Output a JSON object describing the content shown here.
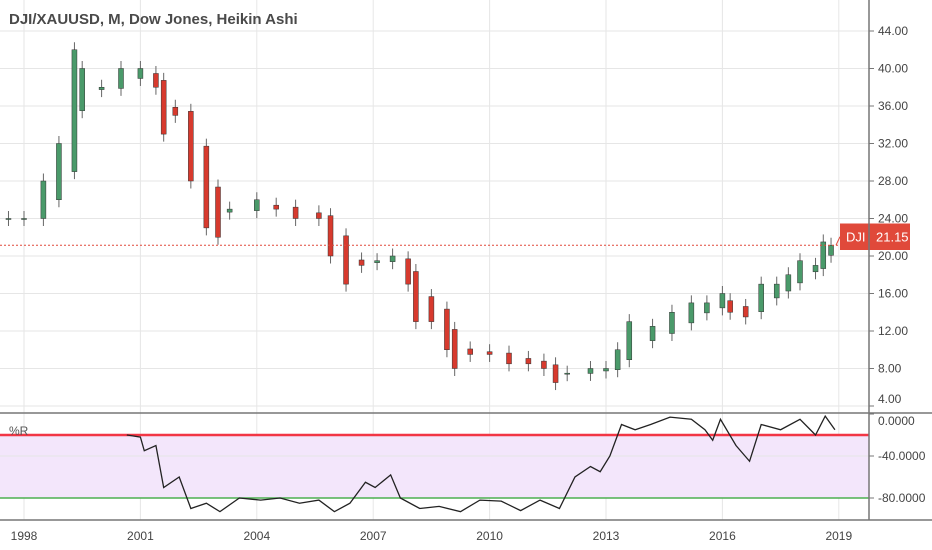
{
  "header": {
    "title": "DJI/XAUUSD, M, Dow Jones, Heikin Ashi"
  },
  "chart_data": [
    {
      "type": "candlestick",
      "style": "Heikin Ashi",
      "symbol": "DJI/XAUUSD",
      "ylim": [
        4,
        44
      ],
      "y_ticks": [
        "44.00",
        "40.00",
        "36.00",
        "32.00",
        "28.00",
        "24.00",
        "20.00",
        "16.00",
        "12.00",
        "8.00",
        "4.00"
      ],
      "x_ticks": [
        "1998",
        "2001",
        "2004",
        "2007",
        "2010",
        "2013",
        "2016",
        "2019"
      ],
      "grid": true,
      "last_price": {
        "label": "DJI",
        "value": "21.15",
        "color": "#e0493a"
      },
      "colors": {
        "up": "#4a9a6a",
        "down": "#d73a2e"
      },
      "x": [
        1997.6,
        1998.0,
        1998.5,
        1998.9,
        1999.3,
        1999.5,
        2000.0,
        2000.5,
        2001.0,
        2001.4,
        2001.6,
        2001.9,
        2002.3,
        2002.7,
        2003.0,
        2003.3,
        2004.0,
        2004.5,
        2005.0,
        2005.6,
        2005.9,
        2006.3,
        2006.7,
        2007.1,
        2007.5,
        2007.9,
        2008.1,
        2008.5,
        2008.9,
        2009.1,
        2009.5,
        2010.0,
        2010.5,
        2011.0,
        2011.4,
        2011.7,
        2012.0,
        2012.6,
        2013.0,
        2013.3,
        2013.6,
        2014.2,
        2014.7,
        2015.2,
        2015.6,
        2016.0,
        2016.2,
        2016.6,
        2017.0,
        2017.4,
        2017.7,
        2018.0,
        2018.4,
        2018.6,
        2018.8
      ],
      "values": [
        24,
        24,
        28,
        32,
        42,
        40,
        38,
        40,
        40,
        38,
        33,
        35,
        28,
        23,
        22,
        25,
        26,
        25,
        24,
        24,
        20,
        17,
        19,
        19.5,
        20,
        17,
        13,
        13,
        10,
        8,
        9.5,
        9.5,
        8.5,
        8.5,
        8,
        6.5,
        7.5,
        8,
        8,
        10,
        13,
        12.5,
        14,
        15,
        15,
        16,
        14,
        13.5,
        17,
        17,
        18,
        19.5,
        19,
        21.5,
        21.15
      ]
    },
    {
      "type": "line",
      "name": "%R",
      "ylim": [
        -100,
        0
      ],
      "y_ticks": [
        "0.0000",
        "-40.0000",
        "-80.0000"
      ],
      "levels": [
        {
          "value": -20,
          "color": "#f23645"
        },
        {
          "value": -80,
          "color": "#4caf50"
        }
      ],
      "band_color": "#f3e6fb",
      "line_color": "#222222",
      "x": [
        2000.65,
        2001.0,
        2001.1,
        2001.4,
        2001.6,
        2002.0,
        2002.3,
        2002.7,
        2003.05,
        2003.55,
        2004.1,
        2004.6,
        2005.1,
        2005.6,
        2006.0,
        2006.4,
        2006.8,
        2007.05,
        2007.45,
        2007.7,
        2008.2,
        2008.7,
        2009.25,
        2009.75,
        2010.3,
        2010.8,
        2011.3,
        2011.8,
        2012.2,
        2012.6,
        2012.85,
        2013.1,
        2013.4,
        2013.75,
        2014.15,
        2014.65,
        2015.2,
        2015.55,
        2015.75,
        2015.95,
        2016.35,
        2016.7,
        2017.0,
        2017.5,
        2018.0,
        2018.4,
        2018.65,
        2018.9
      ],
      "values": [
        -20,
        -22,
        -35,
        -30,
        -70,
        -60,
        -90,
        -85,
        -93,
        -80,
        -82,
        -80,
        -85,
        -82,
        -93,
        -85,
        -65,
        -70,
        -58,
        -80,
        -90,
        -88,
        -93,
        -82,
        -83,
        -92,
        -82,
        -90,
        -60,
        -50,
        -55,
        -40,
        -10,
        -15,
        -10,
        -3,
        -5,
        -15,
        -25,
        -5,
        -30,
        -45,
        -10,
        -15,
        -5,
        -20,
        -2,
        -15
      ]
    }
  ]
}
